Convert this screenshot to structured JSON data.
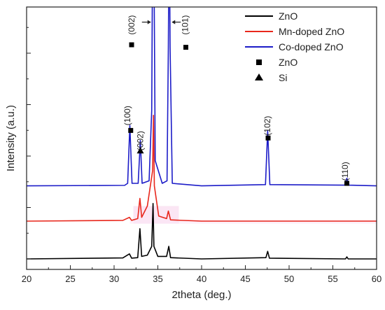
{
  "chart_data": {
    "type": "line",
    "xlabel": "2theta (deg.)",
    "ylabel": "Intensity (a.u.)",
    "xlim": [
      20,
      60
    ],
    "ylim": [
      0,
      100
    ],
    "x_ticks": [
      "20",
      "25",
      "30",
      "35",
      "40",
      "45",
      "50",
      "55",
      "60"
    ],
    "legend_position": "top-right",
    "series": [
      {
        "name": "ZnO",
        "color": "#000000",
        "offset": 0,
        "points": [
          [
            20,
            0
          ],
          [
            31.0,
            0.4
          ],
          [
            31.75,
            2
          ],
          [
            32.0,
            0.3
          ],
          [
            32.7,
            0.5
          ],
          [
            32.95,
            12
          ],
          [
            33.15,
            1
          ],
          [
            33.8,
            1.5
          ],
          [
            34.3,
            5
          ],
          [
            34.45,
            22
          ],
          [
            34.55,
            5
          ],
          [
            35.0,
            1
          ],
          [
            36.0,
            1
          ],
          [
            36.25,
            5
          ],
          [
            36.45,
            0.5
          ],
          [
            40,
            0
          ],
          [
            47.35,
            0.5
          ],
          [
            47.55,
            3
          ],
          [
            47.75,
            0.3
          ],
          [
            56.45,
            0
          ],
          [
            56.6,
            0.8
          ],
          [
            56.75,
            0
          ],
          [
            60,
            0
          ]
        ]
      },
      {
        "name": "Mn-doped ZnO",
        "color": "#e8271c",
        "offset": 15,
        "points": [
          [
            20,
            0
          ],
          [
            31.0,
            0.3
          ],
          [
            31.75,
            1.5
          ],
          [
            32.0,
            0.3
          ],
          [
            32.7,
            1
          ],
          [
            32.95,
            9
          ],
          [
            33.15,
            1.5
          ],
          [
            33.8,
            6
          ],
          [
            34.4,
            20
          ],
          [
            34.5,
            42
          ],
          [
            34.6,
            14
          ],
          [
            35.1,
            2
          ],
          [
            36.0,
            1
          ],
          [
            36.2,
            4
          ],
          [
            36.45,
            0.5
          ],
          [
            40,
            0
          ],
          [
            60,
            0
          ]
        ]
      },
      {
        "name": "Co-doped ZnO",
        "color": "#1c1cc8",
        "offset": 29,
        "points": [
          [
            20,
            0
          ],
          [
            31.2,
            0.2
          ],
          [
            31.55,
            1
          ],
          [
            31.8,
            24
          ],
          [
            32.05,
            1
          ],
          [
            32.75,
            1
          ],
          [
            33.0,
            18
          ],
          [
            33.2,
            1
          ],
          [
            34.0,
            2
          ],
          [
            34.3,
            30
          ],
          [
            34.42,
            110
          ],
          [
            34.52,
            110
          ],
          [
            34.7,
            10
          ],
          [
            35.5,
            1
          ],
          [
            36.05,
            2
          ],
          [
            36.2,
            55
          ],
          [
            36.3,
            110
          ],
          [
            36.4,
            55
          ],
          [
            36.65,
            1
          ],
          [
            40,
            0
          ],
          [
            47.3,
            0.5
          ],
          [
            47.55,
            22
          ],
          [
            47.8,
            0.5
          ],
          [
            56.35,
            0.3
          ],
          [
            56.6,
            3
          ],
          [
            56.85,
            0.3
          ],
          [
            60,
            0
          ]
        ]
      }
    ],
    "annotations": [
      {
        "label": "(002)",
        "x": 32.0,
        "y": 89
      },
      {
        "label": "(101)",
        "x": 38.1,
        "y": 89
      },
      {
        "label": "(100)",
        "x": 31.5,
        "y": 53
      },
      {
        "label": "(002)",
        "x": 33.0,
        "y": 43
      },
      {
        "label": "(102)",
        "x": 47.5,
        "y": 49
      },
      {
        "label": "(110)",
        "x": 56.4,
        "y": 31
      }
    ],
    "markers": [
      {
        "symbol": "square",
        "x": 32.0,
        "y": 85
      },
      {
        "symbol": "square",
        "x": 38.2,
        "y": 84
      },
      {
        "symbol": "square",
        "x": 31.9,
        "y": 51
      },
      {
        "symbol": "triangle",
        "x": 33.0,
        "y": 43
      },
      {
        "symbol": "square",
        "x": 47.6,
        "y": 48
      },
      {
        "symbol": "square",
        "x": 56.6,
        "y": 30
      }
    ],
    "legend": [
      {
        "label": "ZnO",
        "kind": "line",
        "color": "#000000"
      },
      {
        "label": "Mn-doped ZnO",
        "kind": "line",
        "color": "#e8271c"
      },
      {
        "label": "Co-doped ZnO",
        "kind": "line",
        "color": "#1c1cc8"
      },
      {
        "label": "ZnO",
        "kind": "square",
        "color": "#000000"
      },
      {
        "label": "Si",
        "kind": "triangle",
        "color": "#000000"
      }
    ]
  }
}
